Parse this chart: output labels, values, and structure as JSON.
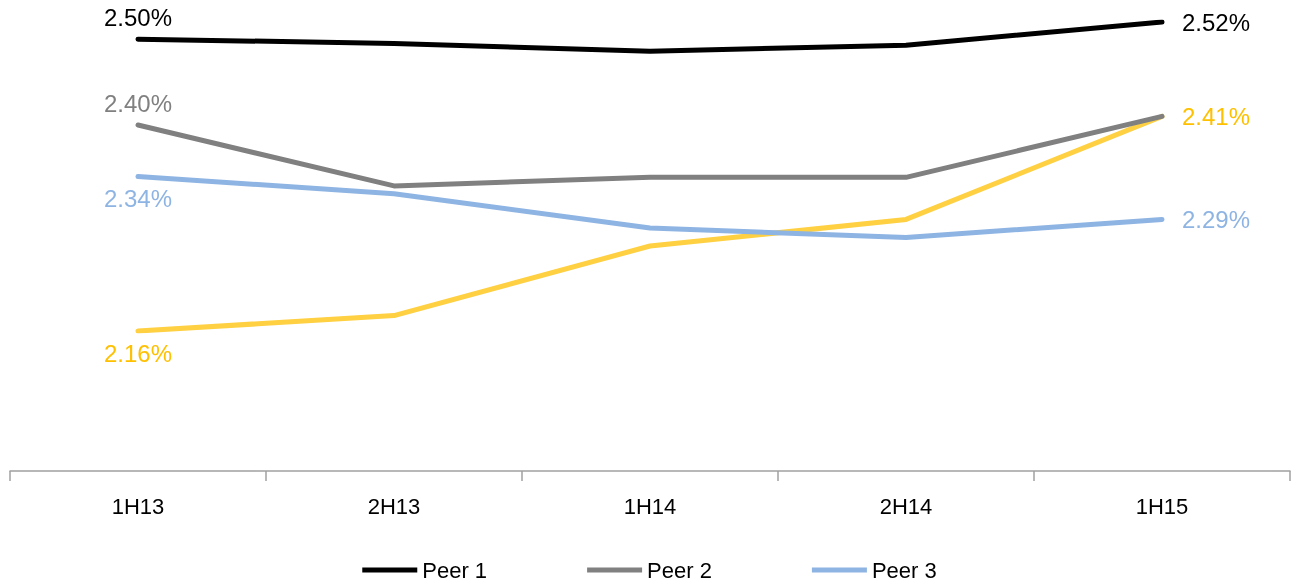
{
  "chart_data": {
    "type": "line",
    "categories": [
      "1H13",
      "2H13",
      "1H14",
      "2H14",
      "1H15"
    ],
    "series": [
      {
        "color": "#ffd042",
        "values": [
          2.16,
          2.178,
          2.259,
          2.29,
          2.41
        ],
        "value_labels": [
          "2.16%",
          null,
          null,
          null,
          "2.41%"
        ]
      },
      {
        "name": "Peer 1",
        "color": "#000000",
        "values": [
          2.5,
          2.495,
          2.486,
          2.493,
          2.52
        ],
        "value_labels": [
          "2.50%",
          null,
          null,
          null,
          "2.52%"
        ]
      },
      {
        "name": "Peer 2",
        "color": "#808080",
        "values": [
          2.4,
          2.329,
          2.339,
          2.339,
          2.41
        ],
        "value_labels": [
          "2.40%",
          null,
          null,
          null,
          null
        ]
      },
      {
        "name": "Peer 3",
        "color": "#8eb4e3",
        "values": [
          2.34,
          2.32,
          2.28,
          2.269,
          2.29
        ],
        "value_labels": [
          "2.34%",
          null,
          null,
          null,
          "2.29%"
        ]
      }
    ],
    "grid": false,
    "legend": "bottom",
    "marker": "none",
    "line_style": "solid",
    "tick_labels": "x"
  }
}
